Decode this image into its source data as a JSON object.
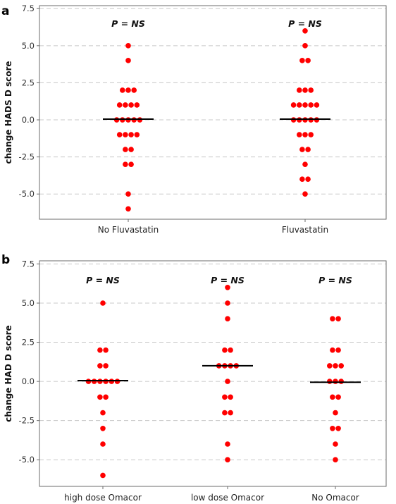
{
  "chart_data": [
    {
      "panel": "a",
      "type": "scatter",
      "ylabel": "change HADS D score",
      "ylim": [
        -6.7,
        7.7
      ],
      "yticks": [
        "-5.0",
        "-2.5",
        "0.0",
        "2.5",
        "5.0",
        "7.5"
      ],
      "grid": true,
      "categories": [
        "No Fluvastatin",
        "Fluvastatin"
      ],
      "annotations": [
        "P = NS",
        "P = NS"
      ],
      "medians": [
        0.05,
        0.05
      ],
      "groups": [
        {
          "category": "No Fluvastatin",
          "values": [
            5,
            4,
            2,
            2,
            2,
            1,
            1,
            1,
            1,
            0,
            0,
            0,
            0,
            0,
            -1,
            -1,
            -1,
            -1,
            -2,
            -2,
            -3,
            -3,
            -5,
            -6
          ]
        },
        {
          "category": "Fluvastatin",
          "values": [
            6,
            5,
            4,
            4,
            2,
            2,
            2,
            1,
            1,
            1,
            1,
            1,
            0,
            0,
            0,
            0,
            0,
            -1,
            -1,
            -1,
            -2,
            -2,
            -3,
            -4,
            -4,
            -5
          ]
        }
      ]
    },
    {
      "panel": "b",
      "type": "scatter",
      "ylabel": "change HAD D score",
      "ylim": [
        -6.7,
        7.7
      ],
      "yticks": [
        "-5.0",
        "-2.5",
        "0.0",
        "2.5",
        "5.0",
        "7.5"
      ],
      "grid": true,
      "categories": [
        "high dose Omacor",
        "low dose Omacor",
        "No Omacor"
      ],
      "annotations": [
        "P = NS",
        "P = NS",
        "P = NS"
      ],
      "medians": [
        0.05,
        1.0,
        -0.05
      ],
      "groups": [
        {
          "category": "high dose Omacor",
          "values": [
            5,
            2,
            2,
            1,
            1,
            0,
            0,
            0,
            0,
            0,
            0,
            -1,
            -1,
            -2,
            -3,
            -4,
            -6
          ]
        },
        {
          "category": "low dose Omacor",
          "values": [
            6,
            5,
            4,
            2,
            2,
            1,
            1,
            1,
            1,
            0,
            -1,
            -1,
            -2,
            -2,
            -4,
            -5
          ]
        },
        {
          "category": "No Omacor",
          "values": [
            4,
            4,
            2,
            2,
            1,
            1,
            1,
            0,
            0,
            0,
            -1,
            -1,
            -2,
            -3,
            -3,
            -4,
            -5
          ]
        }
      ]
    }
  ]
}
